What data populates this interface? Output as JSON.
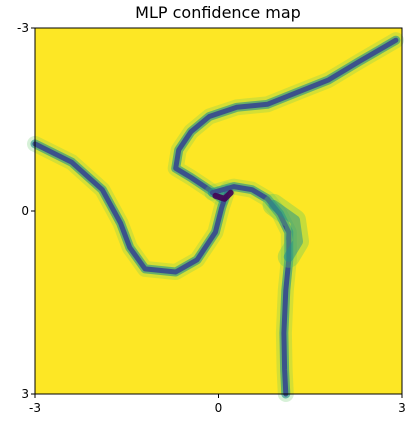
{
  "chart_data": {
    "type": "heatmap",
    "title": "MLP confidence map",
    "xlabel": "",
    "ylabel": "",
    "xlim": [
      -3,
      3
    ],
    "ylim": [
      3,
      -3
    ],
    "x_ticks": [
      "-3",
      "0",
      "3"
    ],
    "y_ticks": [
      "-3",
      "0",
      "3"
    ],
    "grid": false,
    "colormap": {
      "high": "#fde725",
      "mid_high": "#5ec962",
      "mid": "#21918c",
      "mid_low": "#3b528b",
      "low": "#440154"
    },
    "low_confidence_curves": [
      {
        "name": "upper-arm",
        "points": [
          [
            2.9,
            -2.8
          ],
          [
            2.3,
            -2.45
          ],
          [
            1.8,
            -2.15
          ],
          [
            1.3,
            -1.95
          ],
          [
            0.8,
            -1.75
          ],
          [
            0.3,
            -1.7
          ],
          [
            -0.15,
            -1.55
          ],
          [
            -0.45,
            -1.3
          ],
          [
            -0.65,
            -1.0
          ],
          [
            -0.7,
            -0.7
          ],
          [
            -0.45,
            -0.55
          ],
          [
            -0.15,
            -0.35
          ],
          [
            0.05,
            -0.2
          ]
        ],
        "value": 0.35
      },
      {
        "name": "left-arm",
        "points": [
          [
            -3.0,
            -1.1
          ],
          [
            -2.4,
            -0.8
          ],
          [
            -1.9,
            -0.35
          ],
          [
            -1.6,
            0.2
          ],
          [
            -1.45,
            0.6
          ],
          [
            -1.2,
            0.95
          ],
          [
            -0.7,
            1.0
          ],
          [
            -0.35,
            0.8
          ],
          [
            -0.05,
            0.35
          ],
          [
            0.05,
            -0.05
          ],
          [
            0.15,
            -0.35
          ]
        ],
        "value": 0.3
      },
      {
        "name": "lower-arm",
        "points": [
          [
            -0.1,
            -0.3
          ],
          [
            0.25,
            -0.4
          ],
          [
            0.55,
            -0.35
          ],
          [
            0.8,
            -0.2
          ],
          [
            1.0,
            0.05
          ],
          [
            1.15,
            0.35
          ],
          [
            1.15,
            0.8
          ],
          [
            1.1,
            1.3
          ],
          [
            1.07,
            2.0
          ],
          [
            1.08,
            2.6
          ],
          [
            1.1,
            3.0
          ]
        ],
        "value": 0.3
      },
      {
        "name": "blur-lobe",
        "points": [
          [
            0.9,
            -0.1
          ],
          [
            1.25,
            0.15
          ],
          [
            1.3,
            0.5
          ],
          [
            1.15,
            0.75
          ]
        ],
        "value": 0.6
      },
      {
        "name": "dark-core",
        "points": [
          [
            -0.05,
            -0.25
          ],
          [
            0.1,
            -0.2
          ],
          [
            0.2,
            -0.3
          ]
        ],
        "value": 0.05
      }
    ]
  }
}
